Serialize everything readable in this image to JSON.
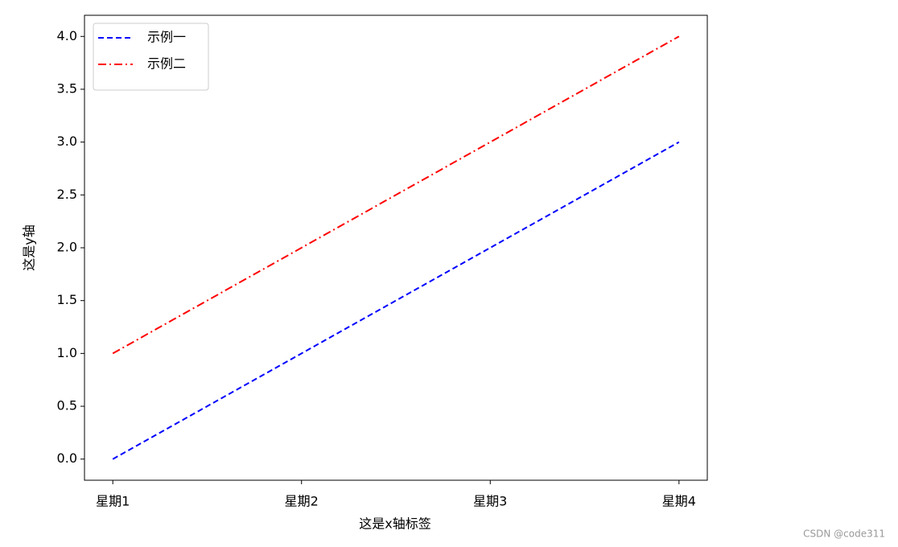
{
  "chart_data": {
    "type": "line",
    "x_label": "这是x轴标签",
    "y_label": "这是y轴",
    "categories": [
      "星期1",
      "星期2",
      "星期3",
      "星期4"
    ],
    "series": [
      {
        "name": "示例一",
        "color": "#0000ff",
        "linestyle": "dashed",
        "values": [
          0,
          1,
          2,
          3
        ]
      },
      {
        "name": "示例二",
        "color": "#ff0000",
        "linestyle": "dashdot",
        "values": [
          1,
          2,
          3,
          4
        ]
      }
    ],
    "ylim": [
      -0.2,
      4.2
    ],
    "yticks": [
      {
        "value": 0,
        "label": "0.0"
      },
      0.5,
      {
        "value": 1,
        "label": "1.0"
      },
      1.5,
      {
        "value": 2,
        "label": "2.0"
      },
      2.5,
      {
        "value": 3,
        "label": "3.0"
      },
      3.5,
      {
        "value": 4,
        "label": "4.0"
      }
    ],
    "legend": "upper left",
    "grid": false
  },
  "watermark": "CSDN @code311"
}
